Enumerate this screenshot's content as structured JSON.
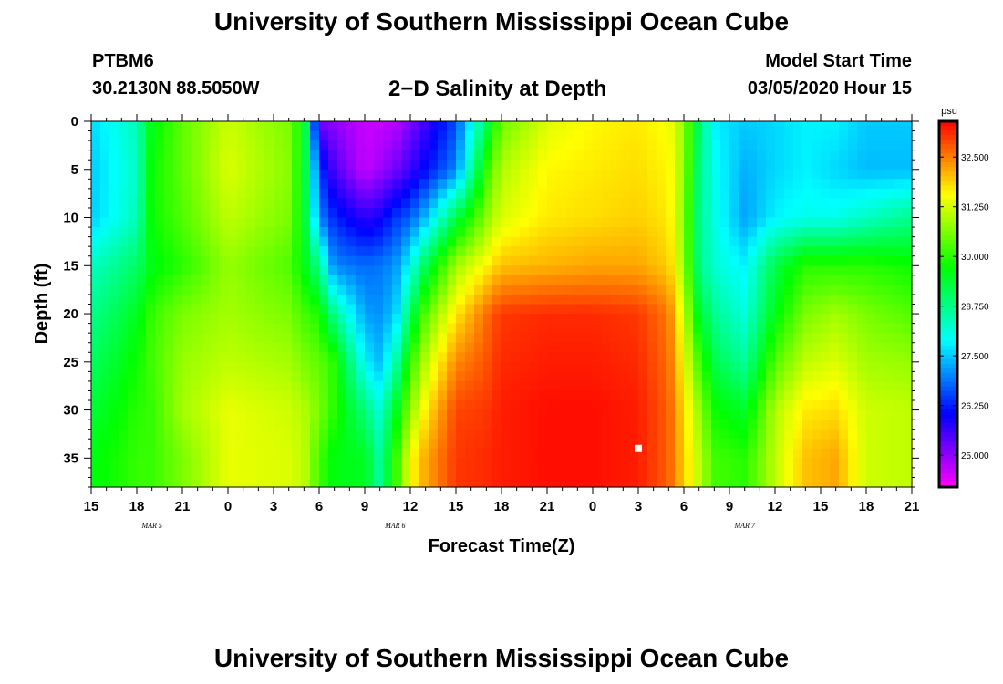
{
  "header": {
    "title": "University of Southern Mississippi Ocean Cube",
    "station_id": "PTBM6",
    "station_coords": "30.2130N 88.5050W",
    "plot_title": "2−D Salinity at Depth",
    "model_start_label": "Model Start Time",
    "model_start_value": "03/05/2020 Hour 15"
  },
  "footer": {
    "title": "University of Southern Mississippi Ocean Cube"
  },
  "chart_data": {
    "type": "heatmap",
    "title": "2−D Salinity at Depth",
    "xlabel": "Forecast Time(Z)",
    "ylabel": "Depth (ft)",
    "x_ticks": [
      "15",
      "18",
      "21",
      "0",
      "3",
      "6",
      "9",
      "12",
      "15",
      "18",
      "21",
      "0",
      "3",
      "6",
      "9",
      "12",
      "15",
      "18",
      "21"
    ],
    "date_labels": [
      {
        "label": "MAR 5",
        "at_hour": 4
      },
      {
        "label": "MAR 6",
        "at_hour": 20
      },
      {
        "label": "MAR 7",
        "at_hour": 43
      }
    ],
    "x_hours_range": [
      0,
      54
    ],
    "y_ticks": [
      0,
      5,
      10,
      15,
      20,
      25,
      30,
      35
    ],
    "ylim": [
      0,
      38
    ],
    "y_inverted": true,
    "colorbar": {
      "unit": "psu",
      "ticks": [
        "32.500",
        "31.250",
        "30.000",
        "28.750",
        "27.500",
        "26.250",
        "25.000"
      ],
      "range": [
        24.2,
        33.4
      ]
    },
    "marker": {
      "hour": 36,
      "depth": 34
    },
    "salinity_profiles": [
      {
        "hour": 0,
        "s": [
          27.6,
          27.5,
          27.5,
          28.3,
          28.7,
          29.0,
          29.3,
          29.6
        ]
      },
      {
        "hour": 3,
        "s": [
          28.4,
          28.3,
          28.4,
          29.0,
          29.5,
          29.8,
          30.0,
          30.1
        ]
      },
      {
        "hour": 4,
        "s": [
          29.6,
          29.8,
          29.8,
          29.6,
          30.1,
          30.2,
          30.1,
          30.1
        ]
      },
      {
        "hour": 6,
        "s": [
          30.4,
          30.4,
          30.3,
          30.0,
          30.6,
          30.8,
          30.9,
          30.6
        ]
      },
      {
        "hour": 9,
        "s": [
          31.2,
          31.3,
          31.1,
          30.8,
          30.9,
          31.1,
          31.4,
          31.4
        ]
      },
      {
        "hour": 13,
        "s": [
          30.6,
          30.7,
          30.6,
          30.3,
          30.6,
          30.9,
          31.2,
          31.3
        ]
      },
      {
        "hour": 14,
        "s": [
          29.6,
          29.5,
          29.5,
          29.6,
          30.2,
          30.6,
          31.0,
          31.1
        ]
      },
      {
        "hour": 15,
        "s": [
          25.2,
          26.5,
          27.0,
          28.7,
          29.9,
          30.4,
          30.6,
          30.2
        ]
      },
      {
        "hour": 16,
        "s": [
          25.0,
          25.5,
          26.3,
          27.0,
          28.7,
          30.0,
          30.0,
          29.6
        ]
      },
      {
        "hour": 18,
        "s": [
          24.6,
          24.6,
          25.7,
          26.8,
          27.2,
          27.8,
          28.8,
          29.5
        ]
      },
      {
        "hour": 19,
        "s": [
          24.6,
          24.9,
          25.9,
          26.9,
          27.1,
          27.4,
          28.2,
          28.6
        ]
      },
      {
        "hour": 20,
        "s": [
          24.7,
          25.2,
          26.4,
          27.1,
          27.5,
          28.4,
          29.4,
          30.0
        ]
      },
      {
        "hour": 21,
        "s": [
          25.1,
          25.6,
          26.7,
          27.9,
          29.0,
          30.0,
          30.7,
          31.5
        ]
      },
      {
        "hour": 22,
        "s": [
          25.6,
          26.1,
          27.4,
          29.2,
          30.4,
          31.1,
          31.7,
          32.2
        ]
      },
      {
        "hour": 24,
        "s": [
          26.6,
          27.0,
          29.2,
          30.9,
          31.7,
          32.4,
          32.9,
          33.0
        ]
      },
      {
        "hour": 26,
        "s": [
          29.0,
          30.0,
          30.7,
          31.6,
          32.6,
          32.8,
          33.0,
          33.1
        ]
      },
      {
        "hour": 27,
        "s": [
          30.5,
          31.0,
          31.3,
          32.0,
          33.0,
          33.1,
          33.2,
          33.2
        ]
      },
      {
        "hour": 30,
        "s": [
          31.3,
          31.6,
          31.7,
          32.1,
          33.1,
          33.2,
          33.3,
          33.3
        ]
      },
      {
        "hour": 33,
        "s": [
          31.6,
          31.7,
          31.8,
          32.2,
          33.1,
          33.2,
          33.3,
          33.3
        ]
      },
      {
        "hour": 36,
        "s": [
          31.7,
          31.8,
          31.9,
          32.2,
          33.0,
          33.1,
          33.2,
          33.2
        ]
      },
      {
        "hour": 38,
        "s": [
          31.5,
          31.6,
          31.7,
          31.9,
          32.5,
          32.6,
          32.7,
          32.7
        ]
      },
      {
        "hour": 39,
        "s": [
          30.8,
          30.8,
          30.7,
          30.8,
          31.2,
          31.5,
          31.8,
          31.9
        ]
      },
      {
        "hour": 40,
        "s": [
          29.0,
          28.8,
          28.7,
          28.8,
          29.4,
          30.2,
          30.8,
          31.1
        ]
      },
      {
        "hour": 41,
        "s": [
          27.8,
          28.0,
          28.1,
          28.2,
          28.7,
          29.2,
          29.8,
          30.2
        ]
      },
      {
        "hour": 43,
        "s": [
          27.5,
          27.3,
          27.2,
          27.8,
          28.1,
          28.6,
          29.4,
          30.0
        ]
      },
      {
        "hour": 45,
        "s": [
          27.6,
          27.6,
          27.8,
          29.2,
          29.6,
          30.3,
          31.0,
          31.1
        ]
      },
      {
        "hour": 47,
        "s": [
          27.8,
          27.8,
          28.0,
          30.0,
          30.6,
          31.1,
          31.7,
          32.0
        ]
      },
      {
        "hour": 49,
        "s": [
          27.8,
          27.6,
          28.0,
          30.0,
          30.9,
          31.3,
          31.8,
          32.2
        ]
      },
      {
        "hour": 51,
        "s": [
          27.5,
          27.4,
          28.3,
          30.0,
          30.6,
          30.9,
          31.2,
          31.2
        ]
      },
      {
        "hour": 54,
        "s": [
          27.5,
          27.4,
          28.7,
          29.8,
          30.3,
          30.8,
          31.1,
          31.1
        ]
      }
    ],
    "profile_depths": [
      0,
      5,
      10,
      15,
      20,
      25,
      30,
      35
    ]
  }
}
